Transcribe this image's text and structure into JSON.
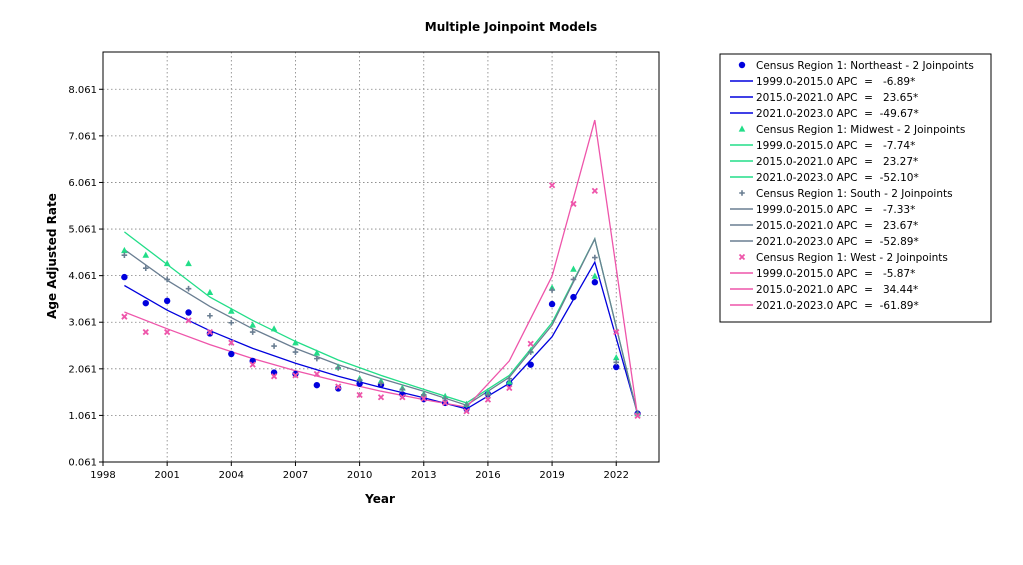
{
  "chart_data": {
    "type": "line",
    "title": "Multiple Joinpoint Models",
    "xlabel": "Year",
    "ylabel": "Age Adjusted Rate",
    "xlim": [
      1998,
      2024
    ],
    "ylim": [
      0.061,
      8.861
    ],
    "xticks": [
      1998,
      2001,
      2004,
      2007,
      2010,
      2013,
      2016,
      2019,
      2022
    ],
    "yticks": [
      0.061,
      1.061,
      2.061,
      3.061,
      4.061,
      5.061,
      6.061,
      7.061,
      8.061
    ],
    "xtick_labels": [
      "1998",
      "2001",
      "2004",
      "2007",
      "2010",
      "2013",
      "2016",
      "2019",
      "2022"
    ],
    "ytick_labels": [
      "0.061",
      "1.061",
      "2.061",
      "3.061",
      "4.061",
      "5.061",
      "6.061",
      "7.061",
      "8.061"
    ],
    "grid": true,
    "legend_position": "right",
    "series": [
      {
        "name": "Census Region 1: Northeast - 2 Joinpoints",
        "color": "#0000DD",
        "marker": "circle",
        "observed": {
          "x": [
            1999,
            2000,
            2001,
            2002,
            2003,
            2004,
            2005,
            2006,
            2007,
            2008,
            2009,
            2010,
            2011,
            2012,
            2013,
            2014,
            2015,
            2016,
            2017,
            2018,
            2019,
            2020,
            2021,
            2022,
            2023
          ],
          "y": [
            4.03,
            3.47,
            3.52,
            3.27,
            2.82,
            2.38,
            2.23,
            1.98,
            1.95,
            1.71,
            1.64,
            1.74,
            1.72,
            1.51,
            1.41,
            1.33,
            1.2,
            1.52,
            1.75,
            2.15,
            3.45,
            3.6,
            3.92,
            2.1,
            1.1
          ]
        },
        "fitted": {
          "x": [
            1999,
            2001,
            2003,
            2005,
            2007,
            2009,
            2011,
            2013,
            2015,
            2017,
            2019,
            2021,
            2023
          ],
          "y": [
            3.85,
            3.32,
            2.88,
            2.5,
            2.18,
            1.9,
            1.66,
            1.44,
            1.2,
            1.75,
            2.75,
            4.35,
            1.1
          ]
        },
        "segments": [
          {
            "label": "1999.0-2015.0 APC  =   -6.89*"
          },
          {
            "label": "2015.0-2021.0 APC  =   23.65*"
          },
          {
            "label": "2021.0-2023.0 APC  =  -49.67*"
          }
        ]
      },
      {
        "name": "Census Region 1: Midwest - 2 Joinpoints",
        "color": "#22DD88",
        "marker": "triangle",
        "observed": {
          "x": [
            1999,
            2000,
            2001,
            2002,
            2003,
            2004,
            2005,
            2006,
            2007,
            2008,
            2009,
            2010,
            2011,
            2012,
            2013,
            2014,
            2015,
            2016,
            2017,
            2018,
            2019,
            2020,
            2021,
            2022,
            2023
          ],
          "y": [
            4.6,
            4.5,
            4.32,
            4.32,
            3.7,
            3.3,
            3.0,
            2.92,
            2.62,
            2.4,
            2.1,
            1.85,
            1.8,
            1.65,
            1.52,
            1.47,
            1.3,
            1.55,
            1.78,
            2.45,
            3.8,
            4.2,
            4.05,
            2.3,
            1.1
          ]
        },
        "fitted": {
          "x": [
            1999,
            2001,
            2003,
            2005,
            2007,
            2009,
            2011,
            2013,
            2015,
            2017,
            2019,
            2021,
            2023
          ],
          "y": [
            5.0,
            4.3,
            3.6,
            3.1,
            2.65,
            2.25,
            1.92,
            1.62,
            1.33,
            1.92,
            3.05,
            4.85,
            1.08
          ]
        },
        "segments": [
          {
            "label": "1999.0-2015.0 APC  =   -7.74*"
          },
          {
            "label": "2015.0-2021.0 APC  =   23.27*"
          },
          {
            "label": "2021.0-2023.0 APC  =  -52.10*"
          }
        ]
      },
      {
        "name": "Census Region 1: South - 2 Joinpoints",
        "color": "#6A7E92",
        "marker": "plus",
        "observed": {
          "x": [
            1999,
            2000,
            2001,
            2002,
            2003,
            2004,
            2005,
            2006,
            2007,
            2008,
            2009,
            2010,
            2011,
            2012,
            2013,
            2014,
            2015,
            2016,
            2017,
            2018,
            2019,
            2020,
            2021,
            2022,
            2023
          ],
          "y": [
            4.5,
            4.22,
            3.98,
            3.78,
            3.2,
            3.05,
            2.85,
            2.55,
            2.42,
            2.28,
            2.08,
            1.82,
            1.75,
            1.62,
            1.5,
            1.42,
            1.28,
            1.5,
            1.85,
            2.42,
            3.75,
            3.98,
            4.45,
            2.2,
            1.1
          ]
        },
        "fitted": {
          "x": [
            1999,
            2001,
            2003,
            2005,
            2007,
            2009,
            2011,
            2013,
            2015,
            2017,
            2019,
            2021,
            2023
          ],
          "y": [
            4.62,
            3.96,
            3.4,
            2.92,
            2.5,
            2.15,
            1.85,
            1.58,
            1.28,
            1.88,
            3.0,
            4.85,
            1.07
          ]
        },
        "segments": [
          {
            "label": "1999.0-2015.0 APC  =   -7.33*"
          },
          {
            "label": "2015.0-2021.0 APC  =   23.67*"
          },
          {
            "label": "2021.0-2023.0 APC  =  -52.89*"
          }
        ]
      },
      {
        "name": "Census Region 1: West - 2 Joinpoints",
        "color": "#EE55AA",
        "marker": "x",
        "observed": {
          "x": [
            1999,
            2000,
            2001,
            2002,
            2003,
            2004,
            2005,
            2006,
            2007,
            2008,
            2009,
            2010,
            2011,
            2012,
            2013,
            2014,
            2015,
            2016,
            2017,
            2018,
            2019,
            2020,
            2021,
            2022,
            2023
          ],
          "y": [
            3.18,
            2.85,
            2.85,
            3.1,
            2.85,
            2.62,
            2.15,
            1.9,
            1.92,
            1.95,
            1.68,
            1.5,
            1.45,
            1.45,
            1.42,
            1.33,
            1.15,
            1.4,
            1.65,
            2.6,
            6.0,
            5.6,
            5.88,
            2.85,
            1.05
          ]
        },
        "fitted": {
          "x": [
            1999,
            2001,
            2003,
            2005,
            2007,
            2009,
            2011,
            2013,
            2015,
            2017,
            2019,
            2021,
            2023
          ],
          "y": [
            3.28,
            2.92,
            2.58,
            2.28,
            2.02,
            1.79,
            1.58,
            1.4,
            1.24,
            2.23,
            4.05,
            7.4,
            1.05
          ]
        },
        "segments": [
          {
            "label": "1999.0-2015.0 APC  =   -5.87*"
          },
          {
            "label": "2015.0-2021.0 APC  =   34.44*"
          },
          {
            "label": "2021.0-2023.0 APC  =  -61.89*"
          }
        ]
      }
    ]
  }
}
